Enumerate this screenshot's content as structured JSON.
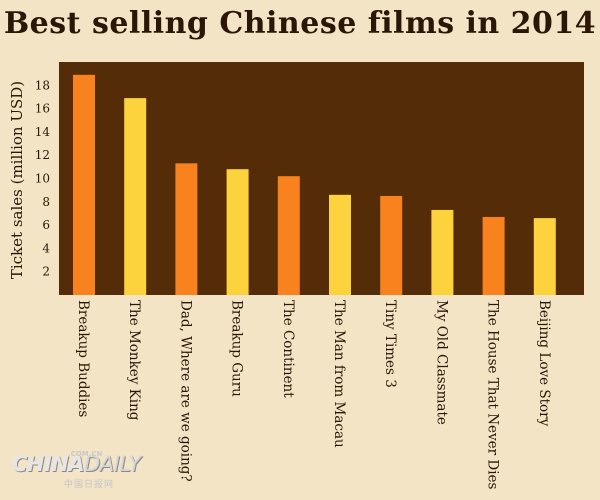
{
  "chart_data": {
    "type": "bar",
    "title": "Best selling Chinese films in 2014",
    "ylabel": "Ticket sales (million USD)",
    "xlabel": "",
    "ylim": [
      0,
      20
    ],
    "yticks": [
      2,
      4,
      6,
      8,
      10,
      12,
      14,
      16,
      18
    ],
    "categories": [
      "Breakup Buddies",
      "The Monkey King",
      "Dad, Where are we going?",
      "Breakup Guru",
      "The Continent",
      "The Man from Macau",
      "Tiny Times 3",
      "My Old Classmate",
      "The House That Never Dies",
      "Beijing Love Story"
    ],
    "values": [
      18.9,
      16.9,
      11.3,
      10.8,
      10.2,
      8.6,
      8.5,
      7.3,
      6.7,
      6.6
    ],
    "bar_colors": [
      "#f7821e",
      "#fcd33c",
      "#f7821e",
      "#fcd33c",
      "#f7821e",
      "#fcd33c",
      "#f7821e",
      "#fcd33c",
      "#f7821e",
      "#fcd33c"
    ],
    "plot_background": "#552c08",
    "grid": false
  },
  "logo": {
    "main": "CHINADAILY",
    "dotcom": ".COM.CN",
    "cn": "中国日报网"
  }
}
